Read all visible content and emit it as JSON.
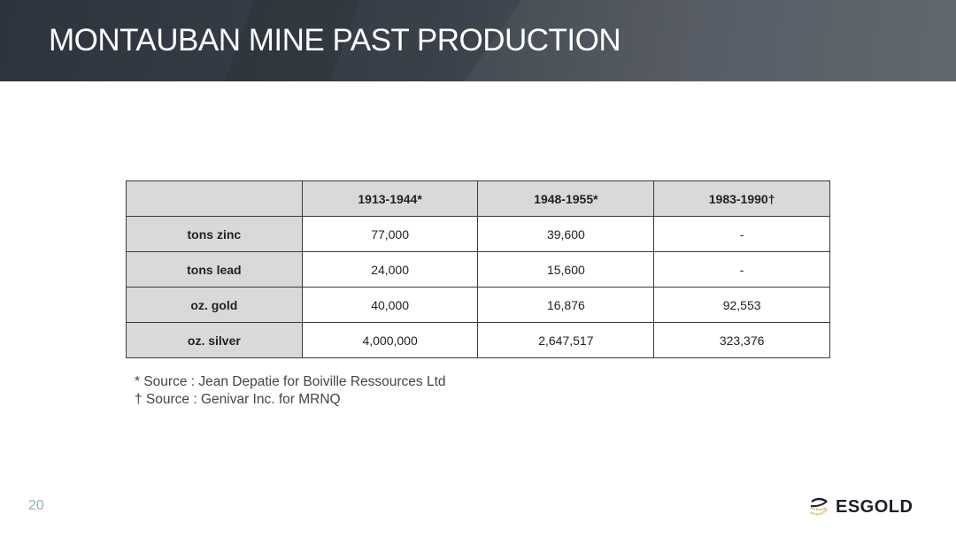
{
  "title": "MONTAUBAN MINE PAST PRODUCTION",
  "table": {
    "headers": [
      "",
      "1913-1944*",
      "1948-1955*",
      "1983-1990†"
    ],
    "rows": [
      {
        "label": "tons zinc",
        "values": [
          "77,000",
          "39,600",
          "-"
        ]
      },
      {
        "label": "tons lead",
        "values": [
          "24,000",
          "15,600",
          "-"
        ]
      },
      {
        "label": "oz. gold",
        "values": [
          "40,000",
          "16,876",
          "92,553"
        ]
      },
      {
        "label": "oz. silver",
        "values": [
          "4,000,000",
          "2,647,517",
          "323,376"
        ]
      }
    ]
  },
  "notes": [
    "* Source : Jean Depatie for Boiville Ressources Ltd",
    "† Source : Genivar Inc. for MRNQ"
  ],
  "page_number": "20",
  "logo_text": "ESGOLD"
}
